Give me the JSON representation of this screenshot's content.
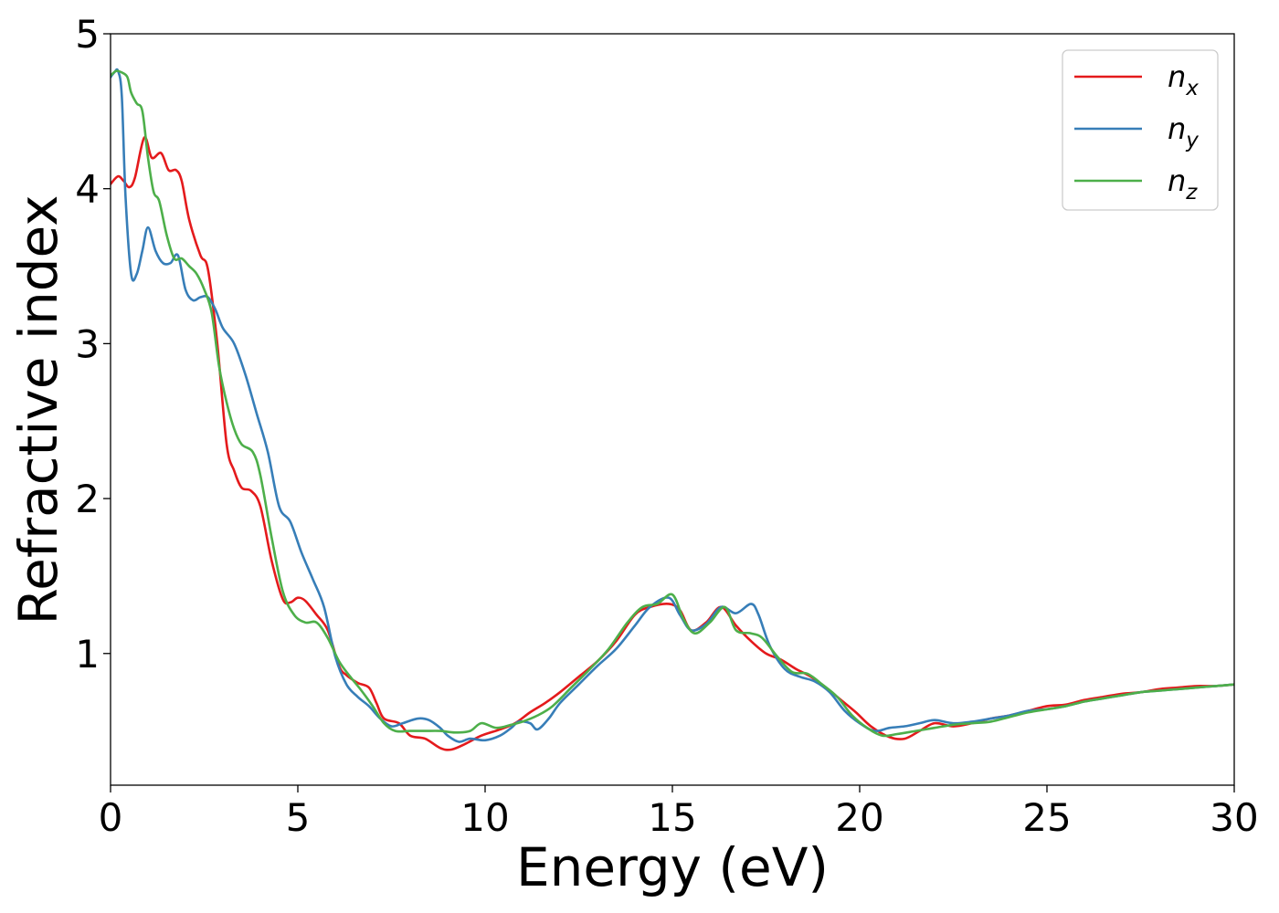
{
  "chart_data": {
    "type": "line",
    "xlabel": "Energy (eV)",
    "ylabel": "Refractive index",
    "xlim": [
      0,
      30
    ],
    "ylim": [
      0.15,
      5
    ],
    "xticks": [
      0,
      5,
      10,
      15,
      20,
      25,
      30
    ],
    "yticks": [
      1,
      2,
      3,
      4,
      5
    ],
    "grid": false,
    "legend_position": "top-right",
    "series": [
      {
        "name": "n_x",
        "legend_base": "n",
        "legend_sub": "x",
        "color": "#e41a1c",
        "points": [
          [
            0,
            4.03
          ],
          [
            0.2,
            4.08
          ],
          [
            0.35,
            4.05
          ],
          [
            0.5,
            4.01
          ],
          [
            0.65,
            4.07
          ],
          [
            0.9,
            4.33
          ],
          [
            1.1,
            4.2
          ],
          [
            1.35,
            4.23
          ],
          [
            1.55,
            4.12
          ],
          [
            1.75,
            4.12
          ],
          [
            1.9,
            4.05
          ],
          [
            2.1,
            3.8
          ],
          [
            2.4,
            3.57
          ],
          [
            2.6,
            3.48
          ],
          [
            2.85,
            3.0
          ],
          [
            3.1,
            2.35
          ],
          [
            3.3,
            2.18
          ],
          [
            3.5,
            2.07
          ],
          [
            3.75,
            2.05
          ],
          [
            4.0,
            1.95
          ],
          [
            4.3,
            1.6
          ],
          [
            4.6,
            1.35
          ],
          [
            4.8,
            1.33
          ],
          [
            5.0,
            1.36
          ],
          [
            5.2,
            1.34
          ],
          [
            5.5,
            1.25
          ],
          [
            5.8,
            1.15
          ],
          [
            6.1,
            0.92
          ],
          [
            6.3,
            0.86
          ],
          [
            6.6,
            0.81
          ],
          [
            6.9,
            0.78
          ],
          [
            7.1,
            0.68
          ],
          [
            7.3,
            0.58
          ],
          [
            7.7,
            0.55
          ],
          [
            8.0,
            0.47
          ],
          [
            8.4,
            0.45
          ],
          [
            8.8,
            0.39
          ],
          [
            9.1,
            0.38
          ],
          [
            9.5,
            0.42
          ],
          [
            9.9,
            0.47
          ],
          [
            10.4,
            0.51
          ],
          [
            10.8,
            0.55
          ],
          [
            11.2,
            0.62
          ],
          [
            11.6,
            0.68
          ],
          [
            12.0,
            0.75
          ],
          [
            12.5,
            0.85
          ],
          [
            13.0,
            0.95
          ],
          [
            13.5,
            1.08
          ],
          [
            14.0,
            1.25
          ],
          [
            14.4,
            1.3
          ],
          [
            14.9,
            1.32
          ],
          [
            15.2,
            1.28
          ],
          [
            15.5,
            1.15
          ],
          [
            15.9,
            1.2
          ],
          [
            16.3,
            1.3
          ],
          [
            16.7,
            1.18
          ],
          [
            17.1,
            1.08
          ],
          [
            17.5,
            1.0
          ],
          [
            17.9,
            0.96
          ],
          [
            18.3,
            0.9
          ],
          [
            18.7,
            0.85
          ],
          [
            19.1,
            0.78
          ],
          [
            19.5,
            0.7
          ],
          [
            19.9,
            0.62
          ],
          [
            20.3,
            0.53
          ],
          [
            20.8,
            0.46
          ],
          [
            21.2,
            0.45
          ],
          [
            21.6,
            0.5
          ],
          [
            22.0,
            0.55
          ],
          [
            22.5,
            0.53
          ],
          [
            23.0,
            0.55
          ],
          [
            23.5,
            0.58
          ],
          [
            24.0,
            0.6
          ],
          [
            24.5,
            0.63
          ],
          [
            25.0,
            0.66
          ],
          [
            25.5,
            0.67
          ],
          [
            26.0,
            0.7
          ],
          [
            26.5,
            0.72
          ],
          [
            27.0,
            0.74
          ],
          [
            27.5,
            0.75
          ],
          [
            28.0,
            0.77
          ],
          [
            28.5,
            0.78
          ],
          [
            29.0,
            0.79
          ],
          [
            29.5,
            0.79
          ],
          [
            30.0,
            0.8
          ]
        ]
      },
      {
        "name": "n_y",
        "legend_base": "n",
        "legend_sub": "y",
        "color": "#377eb8",
        "points": [
          [
            0,
            4.72
          ],
          [
            0.1,
            4.75
          ],
          [
            0.2,
            4.76
          ],
          [
            0.3,
            4.6
          ],
          [
            0.4,
            3.95
          ],
          [
            0.55,
            3.45
          ],
          [
            0.7,
            3.45
          ],
          [
            0.85,
            3.6
          ],
          [
            1.0,
            3.75
          ],
          [
            1.2,
            3.6
          ],
          [
            1.4,
            3.52
          ],
          [
            1.6,
            3.52
          ],
          [
            1.8,
            3.57
          ],
          [
            2.0,
            3.35
          ],
          [
            2.2,
            3.28
          ],
          [
            2.4,
            3.3
          ],
          [
            2.6,
            3.3
          ],
          [
            2.8,
            3.22
          ],
          [
            3.0,
            3.1
          ],
          [
            3.3,
            3.0
          ],
          [
            3.6,
            2.8
          ],
          [
            3.9,
            2.55
          ],
          [
            4.2,
            2.3
          ],
          [
            4.5,
            1.95
          ],
          [
            4.8,
            1.85
          ],
          [
            5.1,
            1.65
          ],
          [
            5.4,
            1.48
          ],
          [
            5.7,
            1.3
          ],
          [
            6.0,
            0.98
          ],
          [
            6.3,
            0.8
          ],
          [
            6.6,
            0.72
          ],
          [
            6.9,
            0.66
          ],
          [
            7.2,
            0.58
          ],
          [
            7.5,
            0.53
          ],
          [
            7.8,
            0.55
          ],
          [
            8.2,
            0.58
          ],
          [
            8.5,
            0.57
          ],
          [
            8.8,
            0.52
          ],
          [
            9.0,
            0.47
          ],
          [
            9.3,
            0.43
          ],
          [
            9.6,
            0.45
          ],
          [
            10.0,
            0.44
          ],
          [
            10.4,
            0.47
          ],
          [
            10.7,
            0.52
          ],
          [
            10.9,
            0.56
          ],
          [
            11.2,
            0.55
          ],
          [
            11.4,
            0.51
          ],
          [
            11.7,
            0.58
          ],
          [
            12.0,
            0.68
          ],
          [
            12.5,
            0.8
          ],
          [
            13.0,
            0.92
          ],
          [
            13.5,
            1.03
          ],
          [
            14.0,
            1.18
          ],
          [
            14.4,
            1.3
          ],
          [
            14.9,
            1.36
          ],
          [
            15.2,
            1.25
          ],
          [
            15.5,
            1.15
          ],
          [
            15.9,
            1.19
          ],
          [
            16.3,
            1.3
          ],
          [
            16.7,
            1.26
          ],
          [
            17.1,
            1.32
          ],
          [
            17.3,
            1.25
          ],
          [
            17.6,
            1.05
          ],
          [
            18.0,
            0.9
          ],
          [
            18.4,
            0.85
          ],
          [
            18.8,
            0.82
          ],
          [
            19.2,
            0.75
          ],
          [
            19.6,
            0.63
          ],
          [
            20.0,
            0.55
          ],
          [
            20.4,
            0.5
          ],
          [
            20.8,
            0.52
          ],
          [
            21.2,
            0.53
          ],
          [
            21.6,
            0.55
          ],
          [
            22.0,
            0.57
          ],
          [
            22.5,
            0.55
          ],
          [
            23.0,
            0.56
          ],
          [
            23.5,
            0.58
          ],
          [
            24.0,
            0.6
          ],
          [
            24.5,
            0.63
          ],
          [
            25.0,
            0.64
          ],
          [
            25.5,
            0.66
          ],
          [
            26.0,
            0.69
          ],
          [
            26.5,
            0.71
          ],
          [
            27.0,
            0.73
          ],
          [
            27.5,
            0.75
          ],
          [
            28.0,
            0.76
          ],
          [
            28.5,
            0.77
          ],
          [
            29.0,
            0.78
          ],
          [
            29.5,
            0.79
          ],
          [
            30.0,
            0.8
          ]
        ]
      },
      {
        "name": "n_z",
        "legend_base": "n",
        "legend_sub": "z",
        "color": "#4daf4a",
        "points": [
          [
            0,
            4.73
          ],
          [
            0.15,
            4.76
          ],
          [
            0.3,
            4.75
          ],
          [
            0.45,
            4.72
          ],
          [
            0.55,
            4.62
          ],
          [
            0.7,
            4.55
          ],
          [
            0.85,
            4.5
          ],
          [
            1.0,
            4.2
          ],
          [
            1.15,
            3.98
          ],
          [
            1.3,
            3.92
          ],
          [
            1.5,
            3.7
          ],
          [
            1.7,
            3.55
          ],
          [
            1.9,
            3.55
          ],
          [
            2.1,
            3.5
          ],
          [
            2.3,
            3.45
          ],
          [
            2.5,
            3.35
          ],
          [
            2.7,
            3.2
          ],
          [
            2.9,
            2.85
          ],
          [
            3.1,
            2.62
          ],
          [
            3.3,
            2.45
          ],
          [
            3.5,
            2.35
          ],
          [
            3.8,
            2.3
          ],
          [
            4.0,
            2.15
          ],
          [
            4.3,
            1.75
          ],
          [
            4.6,
            1.4
          ],
          [
            4.9,
            1.25
          ],
          [
            5.2,
            1.2
          ],
          [
            5.5,
            1.2
          ],
          [
            5.8,
            1.1
          ],
          [
            6.1,
            0.95
          ],
          [
            6.4,
            0.85
          ],
          [
            6.7,
            0.76
          ],
          [
            7.0,
            0.66
          ],
          [
            7.3,
            0.55
          ],
          [
            7.6,
            0.5
          ],
          [
            8.0,
            0.5
          ],
          [
            8.4,
            0.5
          ],
          [
            8.8,
            0.5
          ],
          [
            9.2,
            0.49
          ],
          [
            9.6,
            0.5
          ],
          [
            9.9,
            0.55
          ],
          [
            10.3,
            0.52
          ],
          [
            10.7,
            0.54
          ],
          [
            11.0,
            0.56
          ],
          [
            11.4,
            0.6
          ],
          [
            11.8,
            0.66
          ],
          [
            12.3,
            0.78
          ],
          [
            12.8,
            0.9
          ],
          [
            13.3,
            1.03
          ],
          [
            13.8,
            1.2
          ],
          [
            14.2,
            1.3
          ],
          [
            14.6,
            1.32
          ],
          [
            15.0,
            1.38
          ],
          [
            15.3,
            1.22
          ],
          [
            15.6,
            1.13
          ],
          [
            16.0,
            1.2
          ],
          [
            16.4,
            1.3
          ],
          [
            16.7,
            1.15
          ],
          [
            17.1,
            1.13
          ],
          [
            17.4,
            1.1
          ],
          [
            17.8,
            0.98
          ],
          [
            18.2,
            0.88
          ],
          [
            18.6,
            0.87
          ],
          [
            19.0,
            0.8
          ],
          [
            19.4,
            0.72
          ],
          [
            19.8,
            0.6
          ],
          [
            20.2,
            0.52
          ],
          [
            20.6,
            0.47
          ],
          [
            21.0,
            0.48
          ],
          [
            21.5,
            0.5
          ],
          [
            22.0,
            0.52
          ],
          [
            22.5,
            0.54
          ],
          [
            23.0,
            0.55
          ],
          [
            23.5,
            0.56
          ],
          [
            24.0,
            0.59
          ],
          [
            24.5,
            0.62
          ],
          [
            25.0,
            0.64
          ],
          [
            25.5,
            0.66
          ],
          [
            26.0,
            0.69
          ],
          [
            26.5,
            0.71
          ],
          [
            27.0,
            0.73
          ],
          [
            27.5,
            0.75
          ],
          [
            28.0,
            0.76
          ],
          [
            28.5,
            0.77
          ],
          [
            29.0,
            0.78
          ],
          [
            29.5,
            0.79
          ],
          [
            30.0,
            0.8
          ]
        ]
      }
    ]
  }
}
